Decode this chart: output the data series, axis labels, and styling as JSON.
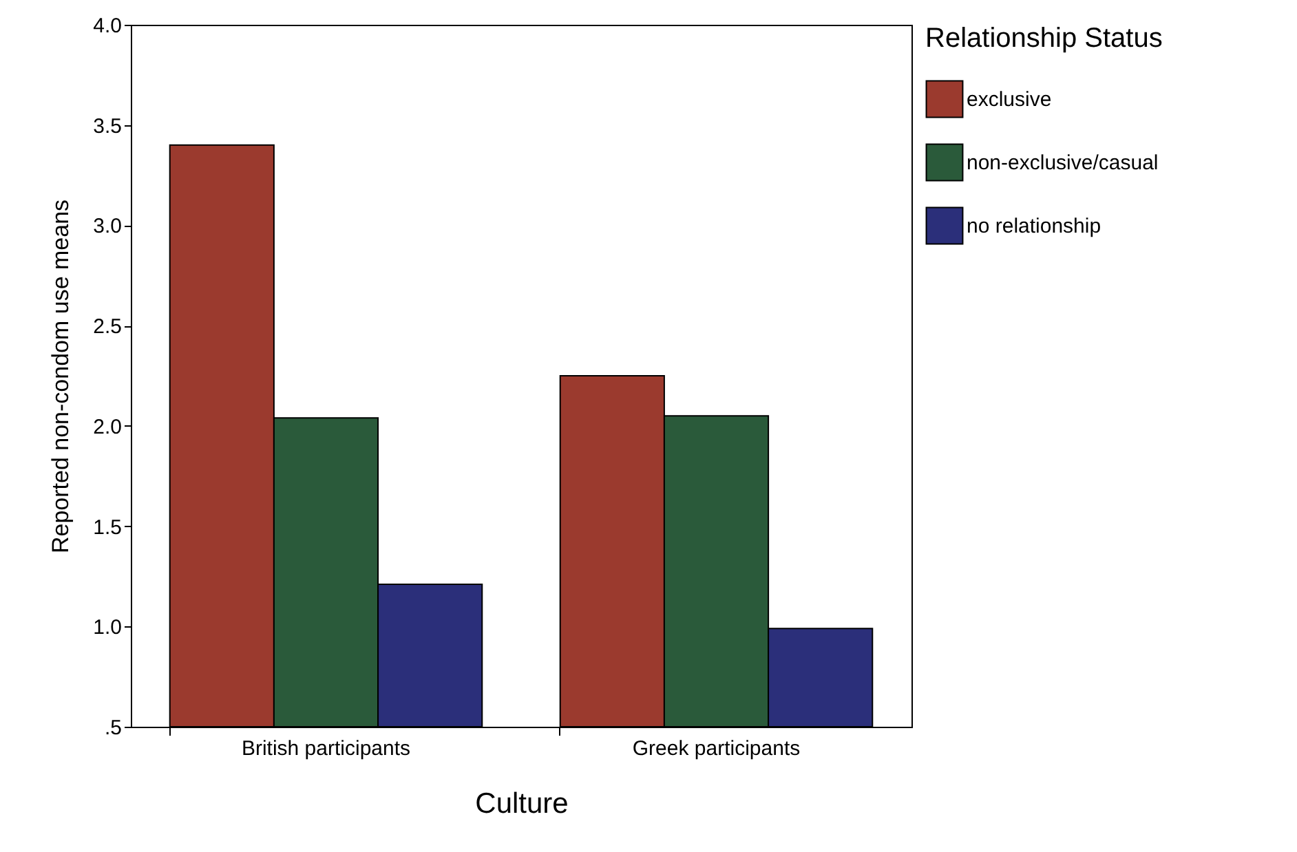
{
  "chart_data": {
    "type": "bar",
    "xlabel": "Culture",
    "ylabel": "Reported non-condom use means",
    "legend_title": "Relationship Status",
    "categories": [
      "British participants",
      "Greek participants"
    ],
    "series": [
      {
        "name": "exclusive",
        "color": "#9b3a2e",
        "values": [
          3.4,
          2.25
        ]
      },
      {
        "name": "non-exclusive/casual",
        "color": "#2a5a3a",
        "values": [
          2.04,
          2.05
        ]
      },
      {
        "name": "no relationship",
        "color": "#2b2f7a",
        "values": [
          1.21,
          0.99
        ]
      }
    ],
    "ylim": [
      0.5,
      4
    ],
    "yticks": [
      {
        "value": 0.5,
        "label": ".5"
      },
      {
        "value": 1,
        "label": "1.0"
      },
      {
        "value": 1.5,
        "label": "1.5"
      },
      {
        "value": 2,
        "label": "2.0"
      },
      {
        "value": 2.5,
        "label": "2.5"
      },
      {
        "value": 3,
        "label": "3.0"
      },
      {
        "value": 3.5,
        "label": "3.5"
      },
      {
        "value": 4,
        "label": "4.0"
      }
    ],
    "legend": "right",
    "grid": false
  }
}
